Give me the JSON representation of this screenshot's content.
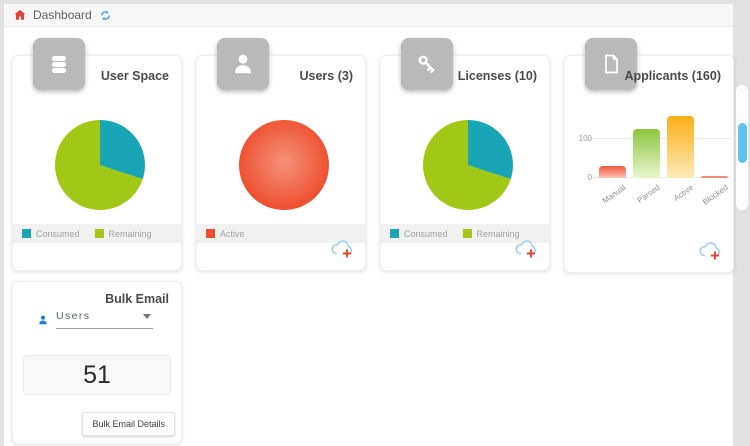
{
  "topbar": {
    "title": "Dashboard"
  },
  "chart_data": [
    {
      "id": "user_space_pie",
      "type": "pie",
      "title": "User Space",
      "labels": [
        "Consumed",
        "Remaining"
      ],
      "values": [
        30,
        70
      ],
      "unit": "percent-estimated",
      "colors": [
        "#18A6B6",
        "#A1C717"
      ],
      "legend_position": "bottom"
    },
    {
      "id": "users_pie",
      "type": "pie",
      "title": "Users (3)",
      "labels": [
        "Active"
      ],
      "values": [
        3
      ],
      "colors": [
        "#EE4E2B"
      ],
      "legend_position": "bottom"
    },
    {
      "id": "licenses_pie",
      "type": "pie",
      "title": "Licenses (10)",
      "labels": [
        "Consumed",
        "Remaining"
      ],
      "values": [
        3,
        7
      ],
      "colors": [
        "#18A6B6",
        "#A1C717"
      ],
      "legend_position": "bottom"
    },
    {
      "id": "applicants_bar",
      "type": "bar",
      "title": "Applicants (160)",
      "categories": [
        "Manual",
        "Parsed",
        "Active",
        "Blocked"
      ],
      "values": [
        30,
        125,
        160,
        2
      ],
      "ylim": [
        0,
        170
      ],
      "yticks": [
        0,
        100
      ],
      "grid": true,
      "colors": [
        "#F2573C",
        "#8CC63F",
        "#FBAE17",
        "#F08D7E"
      ],
      "colors_bottom": [
        "#FBC4B5",
        "#E9F6CF",
        "#FDEBB9",
        "#F08D7E"
      ]
    }
  ],
  "bulk_email": {
    "title": "Bulk Email",
    "selected_option": "Users",
    "count": "51",
    "details_button": "Bulk Email Details"
  },
  "icons": {
    "topbar": [
      "home-icon",
      "refresh-icon"
    ],
    "card_user_space": "database-icon",
    "card_users": "user-icon",
    "card_licenses": "key-icon",
    "card_applicants": "document-icon",
    "card_footer_action": "cloud-upload-add-icon",
    "bulk_email_select": "person-icon",
    "bulk_email_caret": "chevron-down-icon"
  },
  "theme": {
    "teal": "#18A6B6",
    "green": "#A1C717",
    "orange_red": "#EE4E2B",
    "amber": "#FBAE17",
    "bar_green": "#8CC63F",
    "icon_box_gray": "#B9B9B9",
    "legend_strip": "#F1F1F1",
    "scroll_thumb_blue": "#5FC3F0",
    "home_red": "#DC4437",
    "refresh_blue": "#2D9CDB"
  }
}
